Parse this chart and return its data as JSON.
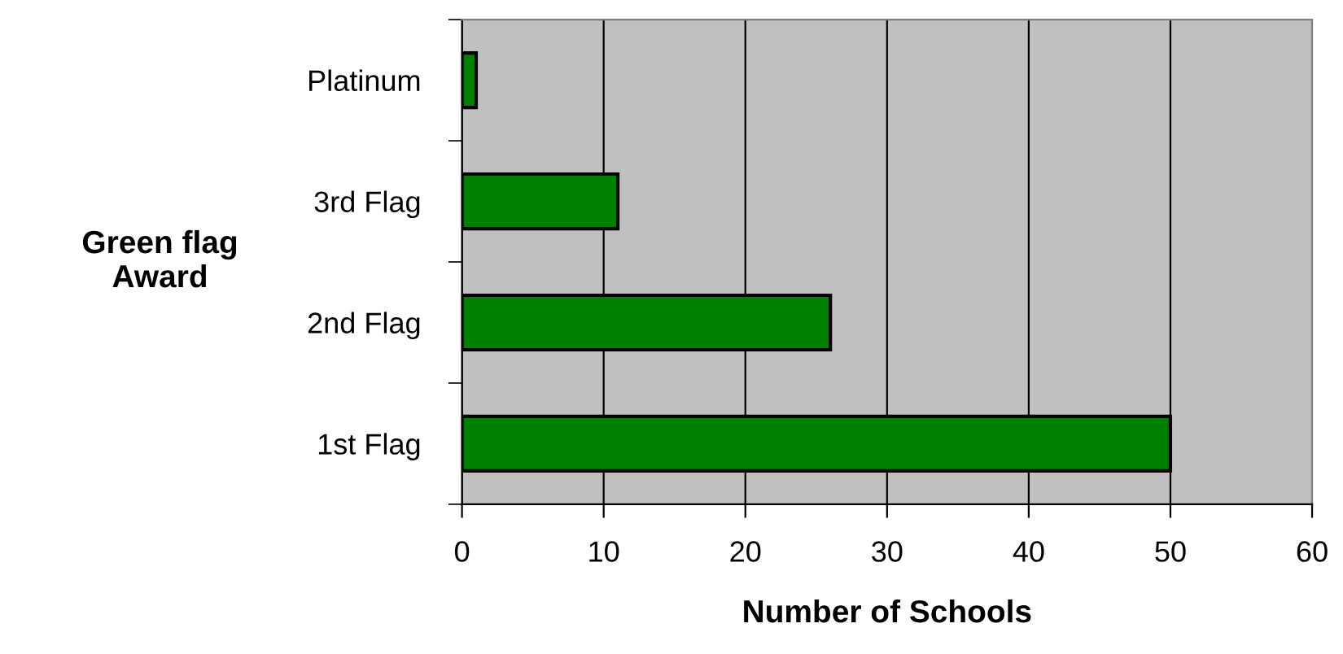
{
  "chart_data": {
    "type": "bar",
    "orientation": "horizontal",
    "xlabel": "Number of Schools",
    "ylabel": "Green flag\nAward",
    "categories": [
      "Platinum",
      "3rd Flag",
      "2nd Flag",
      "1st Flag"
    ],
    "values": [
      1,
      11,
      26,
      50
    ],
    "color": "#008000",
    "xlim": [
      0,
      60
    ],
    "xticks": [
      0,
      10,
      20,
      30,
      40,
      50,
      60
    ],
    "grid": "x",
    "legend": false
  }
}
